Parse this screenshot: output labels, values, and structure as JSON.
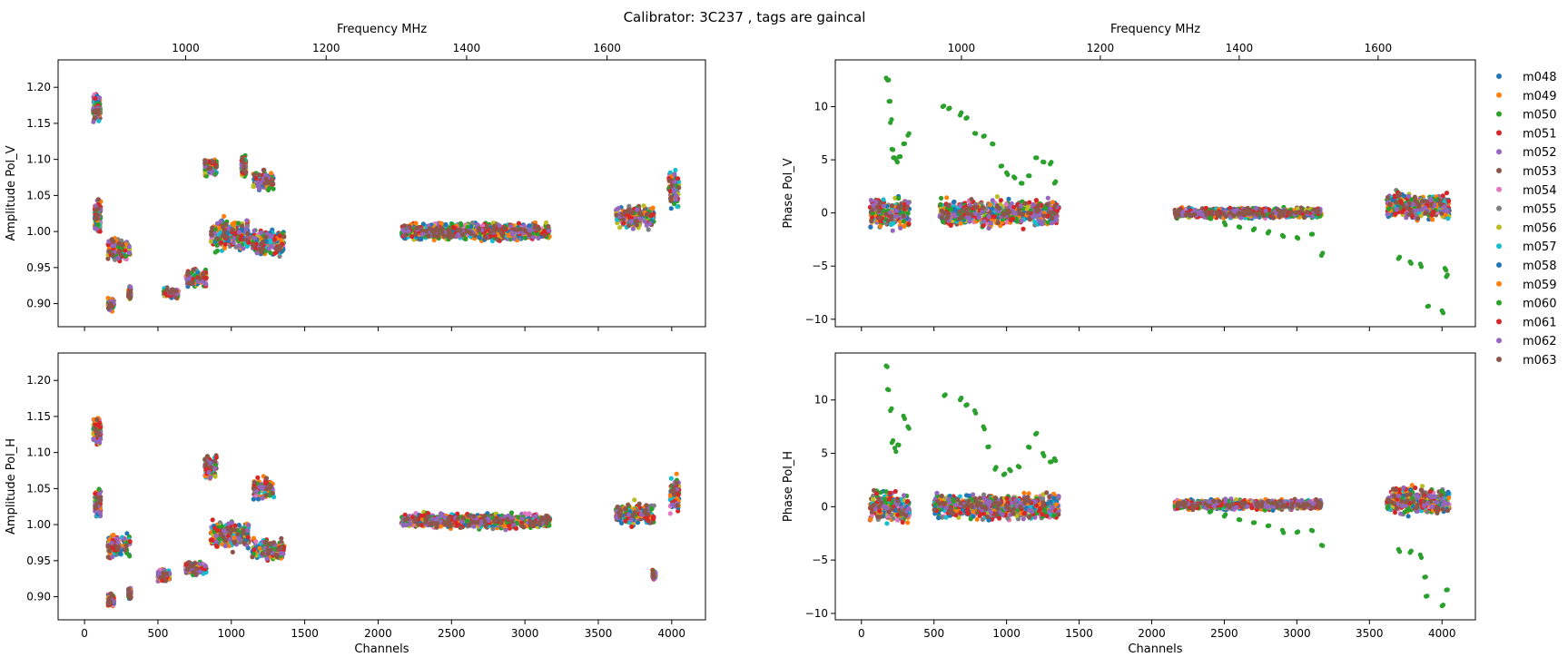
{
  "figure": {
    "title": "Calibrator: 3C237 , tags are gaincal"
  },
  "legend": {
    "placement": "outside-right",
    "entries": [
      {
        "name": "m048",
        "color": "#1f77b4"
      },
      {
        "name": "m049",
        "color": "#ff7f0e"
      },
      {
        "name": "m050",
        "color": "#2ca02c"
      },
      {
        "name": "m051",
        "color": "#d62728"
      },
      {
        "name": "m052",
        "color": "#9467bd"
      },
      {
        "name": "m053",
        "color": "#8c564b"
      },
      {
        "name": "m054",
        "color": "#e377c2"
      },
      {
        "name": "m055",
        "color": "#7f7f7f"
      },
      {
        "name": "m056",
        "color": "#bcbd22"
      },
      {
        "name": "m057",
        "color": "#17becf"
      },
      {
        "name": "m058",
        "color": "#1f77b4"
      },
      {
        "name": "m059",
        "color": "#ff7f0e"
      },
      {
        "name": "m060",
        "color": "#2ca02c"
      },
      {
        "name": "m061",
        "color": "#d62728"
      },
      {
        "name": "m062",
        "color": "#9467bd"
      },
      {
        "name": "m063",
        "color": "#8c564b"
      }
    ]
  },
  "chart_data": [
    {
      "type": "scatter",
      "panel": "top-left",
      "ylabel": "Amplitude Pol_V",
      "xlabel": "",
      "top_xlabel": "Frequency MHz",
      "xlim": [
        -180,
        4230
      ],
      "ylim": [
        0.868,
        1.238
      ],
      "xticks": [
        0,
        500,
        1000,
        1500,
        2000,
        2500,
        3000,
        3500,
        4000
      ],
      "xticklabels": [
        "",
        "",
        "",
        "",
        "",
        "",
        "",
        "",
        ""
      ],
      "yticks": [
        0.9,
        0.95,
        1.0,
        1.05,
        1.1,
        1.15,
        1.2
      ],
      "yticklabels": [
        "0.90",
        "0.95",
        "1.00",
        "1.05",
        "1.10",
        "1.15",
        "1.20"
      ],
      "top_xticks": [
        1000,
        1200,
        1400,
        1600
      ],
      "top_xticklabels": [
        "1000",
        "1200",
        "1400",
        "1600"
      ],
      "freq_axis": {
        "mhz_at_channel_0": 856,
        "mhz_per_channel": 0.209
      },
      "series_clusters": [
        {
          "x_range": [
            60,
            110
          ],
          "y_base": 1.17,
          "spread": 0.028
        },
        {
          "x_range": [
            70,
            110
          ],
          "y_base": 1.02,
          "spread": 0.035
        },
        {
          "x_range": [
            160,
            310
          ],
          "y_base": 0.975,
          "spread": 0.022
        },
        {
          "x_range": [
            160,
            200
          ],
          "y_base": 0.898,
          "spread": 0.012
        },
        {
          "x_range": [
            300,
            315
          ],
          "y_base": 0.915,
          "spread": 0.01
        },
        {
          "x_range": [
            540,
            640
          ],
          "y_base": 0.915,
          "spread": 0.01
        },
        {
          "x_range": [
            690,
            830
          ],
          "y_base": 0.935,
          "spread": 0.015
        },
        {
          "x_range": [
            820,
            900
          ],
          "y_base": 1.09,
          "spread": 0.018
        },
        {
          "x_range": [
            860,
            1120
          ],
          "y_base": 0.995,
          "spread": 0.03
        },
        {
          "x_range": [
            1070,
            1100
          ],
          "y_base": 1.09,
          "spread": 0.02
        },
        {
          "x_range": [
            1150,
            1290
          ],
          "y_base": 1.07,
          "spread": 0.018
        },
        {
          "x_range": [
            1140,
            1360
          ],
          "y_base": 0.985,
          "spread": 0.025
        },
        {
          "x_range": [
            2160,
            3170
          ],
          "y_base": 1.0,
          "spread": 0.015
        },
        {
          "x_range": [
            3620,
            3880
          ],
          "y_base": 1.02,
          "spread": 0.02
        },
        {
          "x_range": [
            3980,
            4050
          ],
          "y_base": 1.06,
          "spread": 0.035
        }
      ]
    },
    {
      "type": "scatter",
      "panel": "top-right",
      "ylabel": "Phase Pol_V",
      "xlabel": "",
      "top_xlabel": "Frequency MHz",
      "xlim": [
        -180,
        4230
      ],
      "ylim": [
        -10.7,
        14.4
      ],
      "xticks": [
        0,
        500,
        1000,
        1500,
        2000,
        2500,
        3000,
        3500,
        4000
      ],
      "xticklabels": [
        "",
        "",
        "",
        "",
        "",
        "",
        "",
        "",
        ""
      ],
      "yticks": [
        -10,
        -5,
        0,
        5,
        10
      ],
      "yticklabels": [
        "−10",
        "−5",
        "0",
        "5",
        "10"
      ],
      "top_xticks": [
        1000,
        1200,
        1400,
        1600
      ],
      "top_xticklabels": [
        "1000",
        "1200",
        "1400",
        "1600"
      ],
      "freq_axis": {
        "mhz_at_channel_0": 856,
        "mhz_per_channel": 0.209
      },
      "series_clusters": [
        {
          "x_range": [
            60,
            330
          ],
          "y_base": 0.0,
          "spread": 1.8
        },
        {
          "x_range": [
            540,
            1360
          ],
          "y_base": 0.0,
          "spread": 1.6
        },
        {
          "x_range": [
            2160,
            3170
          ],
          "y_base": 0.0,
          "spread": 0.6
        },
        {
          "x_range": [
            3620,
            4050
          ],
          "y_base": 0.6,
          "spread": 1.6
        }
      ],
      "m060_points": [
        [
          170,
          12.7
        ],
        [
          180,
          12.5
        ],
        [
          190,
          10.5
        ],
        [
          200,
          8.5
        ],
        [
          210,
          6.0
        ],
        [
          220,
          5.2
        ],
        [
          240,
          5.0
        ],
        [
          260,
          5.3
        ],
        [
          290,
          6.5
        ],
        [
          320,
          7.3
        ],
        [
          560,
          10.0
        ],
        [
          600,
          9.8
        ],
        [
          680,
          9.2
        ],
        [
          720,
          8.9
        ],
        [
          780,
          7.5
        ],
        [
          840,
          7.2
        ],
        [
          900,
          6.5
        ],
        [
          960,
          4.4
        ],
        [
          1000,
          3.8
        ],
        [
          1050,
          3.4
        ],
        [
          1100,
          2.8
        ],
        [
          1150,
          3.5
        ],
        [
          1200,
          5.2
        ],
        [
          1250,
          4.8
        ],
        [
          1300,
          4.6
        ],
        [
          1330,
          2.8
        ],
        [
          2400,
          -0.5
        ],
        [
          2500,
          -0.9
        ],
        [
          2600,
          -1.3
        ],
        [
          2700,
          -1.6
        ],
        [
          2800,
          -1.9
        ],
        [
          2900,
          -2.1
        ],
        [
          3000,
          -2.3
        ],
        [
          3100,
          -2.0
        ],
        [
          3170,
          -4.0
        ],
        [
          3700,
          -4.3
        ],
        [
          3780,
          -4.6
        ],
        [
          3850,
          -4.8
        ],
        [
          3900,
          -8.8
        ],
        [
          4000,
          -9.2
        ],
        [
          4020,
          -5.2
        ],
        [
          4030,
          -6.0
        ]
      ]
    },
    {
      "type": "scatter",
      "panel": "bottom-left",
      "ylabel": "Amplitude Pol_H",
      "xlabel": "Channels",
      "xlim": [
        -180,
        4230
      ],
      "ylim": [
        0.868,
        1.238
      ],
      "xticks": [
        0,
        500,
        1000,
        1500,
        2000,
        2500,
        3000,
        3500,
        4000
      ],
      "xticklabels": [
        "0",
        "500",
        "1000",
        "1500",
        "2000",
        "2500",
        "3000",
        "3500",
        "4000"
      ],
      "yticks": [
        0.9,
        0.95,
        1.0,
        1.05,
        1.1,
        1.15,
        1.2
      ],
      "yticklabels": [
        "0.90",
        "0.95",
        "1.00",
        "1.05",
        "1.10",
        "1.15",
        "1.20"
      ],
      "series_clusters": [
        {
          "x_range": [
            60,
            110
          ],
          "y_base": 1.13,
          "spread": 0.025
        },
        {
          "x_range": [
            70,
            110
          ],
          "y_base": 1.03,
          "spread": 0.025
        },
        {
          "x_range": [
            160,
            310
          ],
          "y_base": 0.97,
          "spread": 0.022
        },
        {
          "x_range": [
            160,
            200
          ],
          "y_base": 0.895,
          "spread": 0.012
        },
        {
          "x_range": [
            300,
            315
          ],
          "y_base": 0.905,
          "spread": 0.01
        },
        {
          "x_range": [
            500,
            580
          ],
          "y_base": 0.93,
          "spread": 0.01
        },
        {
          "x_range": [
            690,
            830
          ],
          "y_base": 0.94,
          "spread": 0.012
        },
        {
          "x_range": [
            820,
            900
          ],
          "y_base": 1.08,
          "spread": 0.02
        },
        {
          "x_range": [
            860,
            1120
          ],
          "y_base": 0.985,
          "spread": 0.025
        },
        {
          "x_range": [
            1150,
            1290
          ],
          "y_base": 1.05,
          "spread": 0.02
        },
        {
          "x_range": [
            1140,
            1360
          ],
          "y_base": 0.965,
          "spread": 0.018
        },
        {
          "x_range": [
            2160,
            3170
          ],
          "y_base": 1.005,
          "spread": 0.013
        },
        {
          "x_range": [
            3620,
            3880
          ],
          "y_base": 1.015,
          "spread": 0.02
        },
        {
          "x_range": [
            3870,
            3890
          ],
          "y_base": 0.93,
          "spread": 0.008
        },
        {
          "x_range": [
            3990,
            4050
          ],
          "y_base": 1.04,
          "spread": 0.035
        }
      ]
    },
    {
      "type": "scatter",
      "panel": "bottom-right",
      "ylabel": "Phase Pol_H",
      "xlabel": "Channels",
      "xlim": [
        -180,
        4230
      ],
      "ylim": [
        -10.6,
        14.4
      ],
      "xticks": [
        0,
        500,
        1000,
        1500,
        2000,
        2500,
        3000,
        3500,
        4000
      ],
      "xticklabels": [
        "0",
        "500",
        "1000",
        "1500",
        "2000",
        "2500",
        "3000",
        "3500",
        "4000"
      ],
      "yticks": [
        -10,
        -5,
        0,
        5,
        10
      ],
      "yticklabels": [
        "−10",
        "−5",
        "0",
        "5",
        "10"
      ],
      "series_clusters": [
        {
          "x_range": [
            60,
            330
          ],
          "y_base": 0.0,
          "spread": 2.0
        },
        {
          "x_range": [
            500,
            1360
          ],
          "y_base": 0.0,
          "spread": 1.6
        },
        {
          "x_range": [
            2160,
            3170
          ],
          "y_base": 0.2,
          "spread": 0.6
        },
        {
          "x_range": [
            3620,
            4050
          ],
          "y_base": 0.6,
          "spread": 1.6
        }
      ],
      "m060_points": [
        [
          170,
          13.2
        ],
        [
          180,
          11.0
        ],
        [
          200,
          9.0
        ],
        [
          210,
          6.0
        ],
        [
          230,
          5.5
        ],
        [
          250,
          5.8
        ],
        [
          290,
          8.5
        ],
        [
          320,
          7.5
        ],
        [
          570,
          10.4
        ],
        [
          680,
          10.0
        ],
        [
          720,
          9.5
        ],
        [
          780,
          9.0
        ],
        [
          840,
          7.5
        ],
        [
          870,
          5.6
        ],
        [
          920,
          3.5
        ],
        [
          980,
          3.0
        ],
        [
          1020,
          3.5
        ],
        [
          1080,
          3.8
        ],
        [
          1150,
          5.6
        ],
        [
          1200,
          6.8
        ],
        [
          1250,
          5.0
        ],
        [
          1300,
          4.2
        ],
        [
          1330,
          4.5
        ],
        [
          2400,
          -0.5
        ],
        [
          2500,
          -0.9
        ],
        [
          2600,
          -1.2
        ],
        [
          2700,
          -1.5
        ],
        [
          2800,
          -1.8
        ],
        [
          2900,
          -2.2
        ],
        [
          3000,
          -2.4
        ],
        [
          3100,
          -2.2
        ],
        [
          3170,
          -3.6
        ],
        [
          3700,
          -4.0
        ],
        [
          3780,
          -4.3
        ],
        [
          3850,
          -4.5
        ],
        [
          3880,
          -6.6
        ],
        [
          3890,
          -8.4
        ],
        [
          4000,
          -9.3
        ],
        [
          4030,
          -7.8
        ]
      ]
    }
  ]
}
